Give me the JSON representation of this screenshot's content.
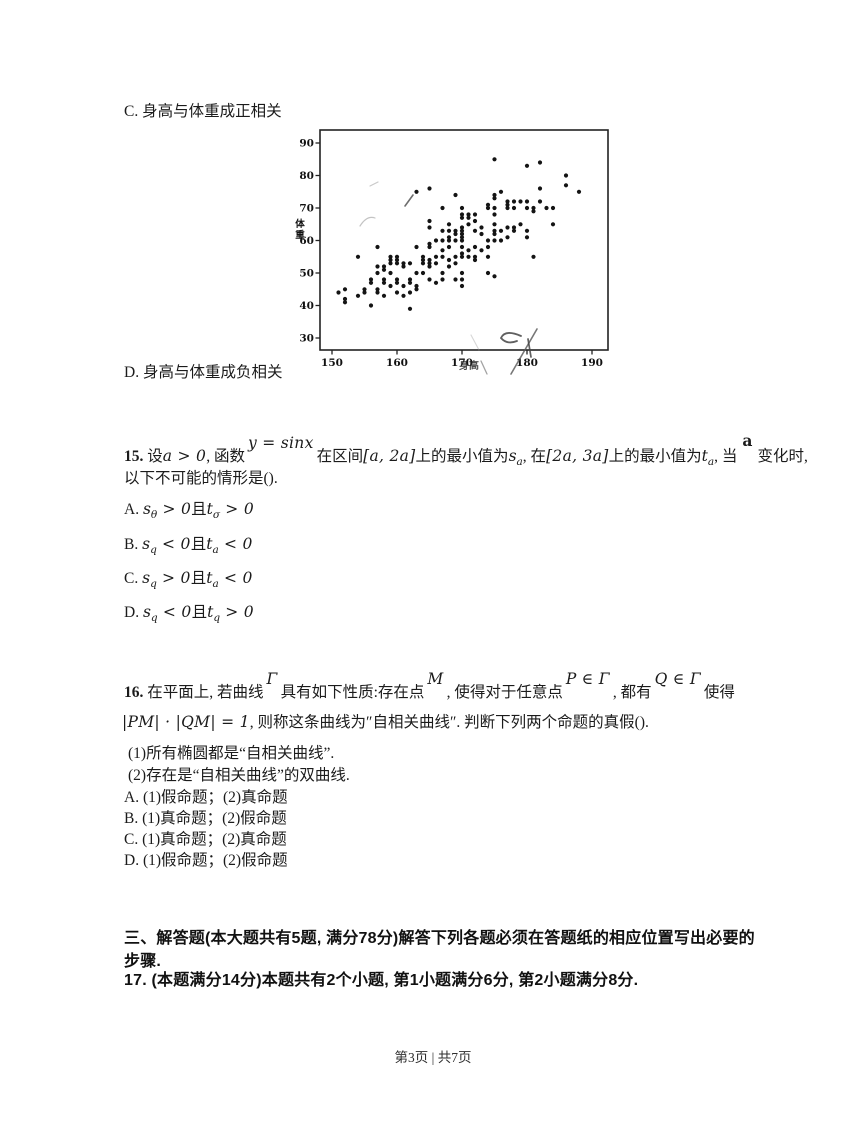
{
  "prev_options": {
    "c": "C. 身高与体重成正相关",
    "d": "D. 身高与体重成负相关"
  },
  "chart_data": {
    "type": "scatter",
    "title": "",
    "xlabel": "身高",
    "ylabel": "体重",
    "x_ticks": [
      150,
      160,
      170,
      180,
      190
    ],
    "y_ticks": [
      90,
      80,
      70,
      60,
      50,
      40,
      30
    ],
    "xlim": [
      148,
      192.5
    ],
    "ylim": [
      26,
      92
    ],
    "points": [
      [
        151,
        44
      ],
      [
        152,
        45
      ],
      [
        152,
        42
      ],
      [
        152,
        41
      ],
      [
        154,
        43
      ],
      [
        154,
        55
      ],
      [
        155,
        45
      ],
      [
        155,
        44
      ],
      [
        156,
        47
      ],
      [
        156,
        48
      ],
      [
        156,
        40
      ],
      [
        157,
        44
      ],
      [
        157,
        45
      ],
      [
        157,
        50
      ],
      [
        157,
        52
      ],
      [
        157,
        58
      ],
      [
        158,
        43
      ],
      [
        158,
        47
      ],
      [
        158,
        48
      ],
      [
        158,
        51
      ],
      [
        158,
        52
      ],
      [
        159,
        46
      ],
      [
        159,
        50
      ],
      [
        159,
        53
      ],
      [
        159,
        54
      ],
      [
        159,
        55
      ],
      [
        160,
        44
      ],
      [
        160,
        47
      ],
      [
        160,
        48
      ],
      [
        160,
        53
      ],
      [
        160,
        54
      ],
      [
        160,
        55
      ],
      [
        161,
        43
      ],
      [
        161,
        46
      ],
      [
        161,
        52
      ],
      [
        161,
        53
      ],
      [
        162,
        39
      ],
      [
        162,
        44
      ],
      [
        162,
        47
      ],
      [
        162,
        48
      ],
      [
        162,
        53
      ],
      [
        163,
        45
      ],
      [
        163,
        46
      ],
      [
        163,
        50
      ],
      [
        163,
        58
      ],
      [
        163,
        75
      ],
      [
        164,
        50
      ],
      [
        164,
        53
      ],
      [
        164,
        54
      ],
      [
        164,
        55
      ],
      [
        165,
        48
      ],
      [
        165,
        52
      ],
      [
        165,
        53
      ],
      [
        165,
        54
      ],
      [
        165,
        58
      ],
      [
        165,
        59
      ],
      [
        165,
        64
      ],
      [
        165,
        66
      ],
      [
        165,
        76
      ],
      [
        166,
        47
      ],
      [
        166,
        53
      ],
      [
        166,
        55
      ],
      [
        166,
        60
      ],
      [
        167,
        48
      ],
      [
        167,
        50
      ],
      [
        167,
        55
      ],
      [
        167,
        57
      ],
      [
        167,
        60
      ],
      [
        167,
        63
      ],
      [
        167,
        70
      ],
      [
        168,
        52
      ],
      [
        168,
        54
      ],
      [
        168,
        58
      ],
      [
        168,
        60
      ],
      [
        168,
        61
      ],
      [
        168,
        63
      ],
      [
        168,
        65
      ],
      [
        169,
        48
      ],
      [
        169,
        53
      ],
      [
        169,
        55
      ],
      [
        169,
        60
      ],
      [
        169,
        62
      ],
      [
        169,
        63
      ],
      [
        169,
        74
      ],
      [
        170,
        46
      ],
      [
        170,
        48
      ],
      [
        170,
        50
      ],
      [
        170,
        55
      ],
      [
        170,
        56
      ],
      [
        170,
        58
      ],
      [
        170,
        60
      ],
      [
        170,
        61
      ],
      [
        170,
        62
      ],
      [
        170,
        63
      ],
      [
        170,
        64
      ],
      [
        170,
        67
      ],
      [
        170,
        68
      ],
      [
        170,
        70
      ],
      [
        171,
        55
      ],
      [
        171,
        57
      ],
      [
        171,
        65
      ],
      [
        171,
        67
      ],
      [
        171,
        68
      ],
      [
        172,
        54
      ],
      [
        172,
        55
      ],
      [
        172,
        58
      ],
      [
        172,
        63
      ],
      [
        172,
        66
      ],
      [
        172,
        68
      ],
      [
        173,
        57
      ],
      [
        173,
        62
      ],
      [
        173,
        64
      ],
      [
        174,
        50
      ],
      [
        174,
        55
      ],
      [
        174,
        58
      ],
      [
        174,
        60
      ],
      [
        174,
        70
      ],
      [
        174,
        71
      ],
      [
        175,
        49
      ],
      [
        175,
        60
      ],
      [
        175,
        62
      ],
      [
        175,
        63
      ],
      [
        175,
        65
      ],
      [
        175,
        68
      ],
      [
        175,
        70
      ],
      [
        175,
        73
      ],
      [
        175,
        74
      ],
      [
        175,
        85
      ],
      [
        176,
        60
      ],
      [
        176,
        63
      ],
      [
        176,
        75
      ],
      [
        177,
        61
      ],
      [
        177,
        64
      ],
      [
        177,
        70
      ],
      [
        177,
        71
      ],
      [
        177,
        72
      ],
      [
        178,
        63
      ],
      [
        178,
        64
      ],
      [
        178,
        70
      ],
      [
        178,
        72
      ],
      [
        179,
        65
      ],
      [
        179,
        72
      ],
      [
        180,
        61
      ],
      [
        180,
        63
      ],
      [
        180,
        70
      ],
      [
        180,
        72
      ],
      [
        180,
        83
      ],
      [
        181,
        55
      ],
      [
        181,
        69
      ],
      [
        181,
        70
      ],
      [
        182,
        72
      ],
      [
        182,
        76
      ],
      [
        182,
        84
      ],
      [
        183,
        70
      ],
      [
        184,
        65
      ],
      [
        184,
        70
      ],
      [
        186,
        77
      ],
      [
        186,
        80
      ],
      [
        188,
        75
      ]
    ]
  },
  "q15": {
    "line1": [
      [
        "b",
        "15."
      ],
      [
        "c",
        " 设"
      ],
      [
        "m",
        "a > 0"
      ],
      [
        "c",
        ", 函数"
      ],
      [
        "r",
        "y = sinx"
      ],
      [
        "c",
        "在区间"
      ],
      [
        "m",
        "[a, 2a]"
      ],
      [
        "c",
        "上的最小值为"
      ],
      [
        "u",
        "s|a"
      ],
      [
        "c",
        ", 在"
      ],
      [
        "m",
        "[2a, 3a]"
      ],
      [
        "c",
        "上的最小值为"
      ],
      [
        "u",
        "t|a"
      ],
      [
        "c",
        ", 当"
      ],
      [
        "rb",
        "a"
      ],
      [
        "c",
        "变化时,"
      ]
    ],
    "line2": "以下不可能的情形是().",
    "options": [
      [
        [
          "c",
          "A. "
        ],
        [
          "u",
          "s|θ"
        ],
        [
          "m",
          " > 0"
        ],
        [
          "c",
          "且"
        ],
        [
          "u",
          "t|σ"
        ],
        [
          "m",
          " > 0"
        ]
      ],
      [
        [
          "c",
          "B. "
        ],
        [
          "u",
          "s|q"
        ],
        [
          "m",
          " < 0"
        ],
        [
          "c",
          "且"
        ],
        [
          "u",
          "t|a"
        ],
        [
          "m",
          " < 0"
        ]
      ],
      [
        [
          "c",
          "C. "
        ],
        [
          "u",
          "s|q"
        ],
        [
          "m",
          " > 0"
        ],
        [
          "c",
          "且"
        ],
        [
          "u",
          "t|a"
        ],
        [
          "m",
          " < 0"
        ]
      ],
      [
        [
          "c",
          "D. "
        ],
        [
          "u",
          "s|q"
        ],
        [
          "m",
          " < 0"
        ],
        [
          "c",
          "且"
        ],
        [
          "u",
          "t|q"
        ],
        [
          "m",
          " > 0"
        ]
      ]
    ]
  },
  "q16": {
    "line1": [
      [
        "b",
        "16."
      ],
      [
        "c",
        " 在平面上, 若曲线"
      ],
      [
        "r",
        "Γ"
      ],
      [
        "c",
        "具有如下性质:存在点"
      ],
      [
        "r",
        "M"
      ],
      [
        "c",
        ", 使得对于任意点"
      ],
      [
        "r",
        "P ∈ Γ"
      ],
      [
        "c",
        ", 都有"
      ],
      [
        "r",
        "Q ∈ Γ"
      ],
      [
        "c",
        "使得"
      ]
    ],
    "line2": [
      [
        "m",
        "|PM| · |QM| = 1"
      ],
      [
        "c",
        ", 则称这条曲线为″自相关曲线″. 判断下列两个命题的真假()."
      ]
    ],
    "sub1": "(1)所有椭圆都是“自相关曲线”.",
    "sub2": "(2)存在是“自相关曲线”的双曲线.",
    "options": [
      "A. (1)假命题；(2)真命题",
      "B. (1)真命题；(2)假命题",
      "C. (1)真命题；(2)真命题",
      "D. (1)假命题；(2)假命题"
    ]
  },
  "section3": {
    "text": "三、解答题(本大题共有5题, 满分78分)解答下列各题必须在答题纸的相应位置写出必要的步骤."
  },
  "q17": {
    "text": "17. (本题满分14分)本题共有2个小题, 第1小题满分6分, 第2小题满分8分."
  },
  "footer": {
    "text": "第3页 | 共7页"
  }
}
